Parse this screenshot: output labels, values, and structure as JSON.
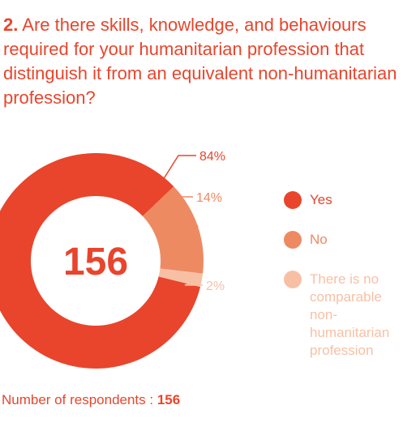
{
  "chart_data": {
    "type": "pie",
    "title_number": "2.",
    "title": "Are there skills, knowledge, and behaviours required for your humanitarian profession that distinguish it from an equivalent non-humanitarian profession?",
    "categories": [
      "Yes",
      "No",
      "There is no comparable non-humanitarian profession"
    ],
    "values": [
      84,
      14,
      2
    ],
    "value_labels": [
      "84%",
      "14%",
      "2%"
    ],
    "colors": [
      "#e8452c",
      "#ee8a62",
      "#f7c0a5"
    ],
    "total": 156,
    "footer": "Number of respondents :"
  }
}
